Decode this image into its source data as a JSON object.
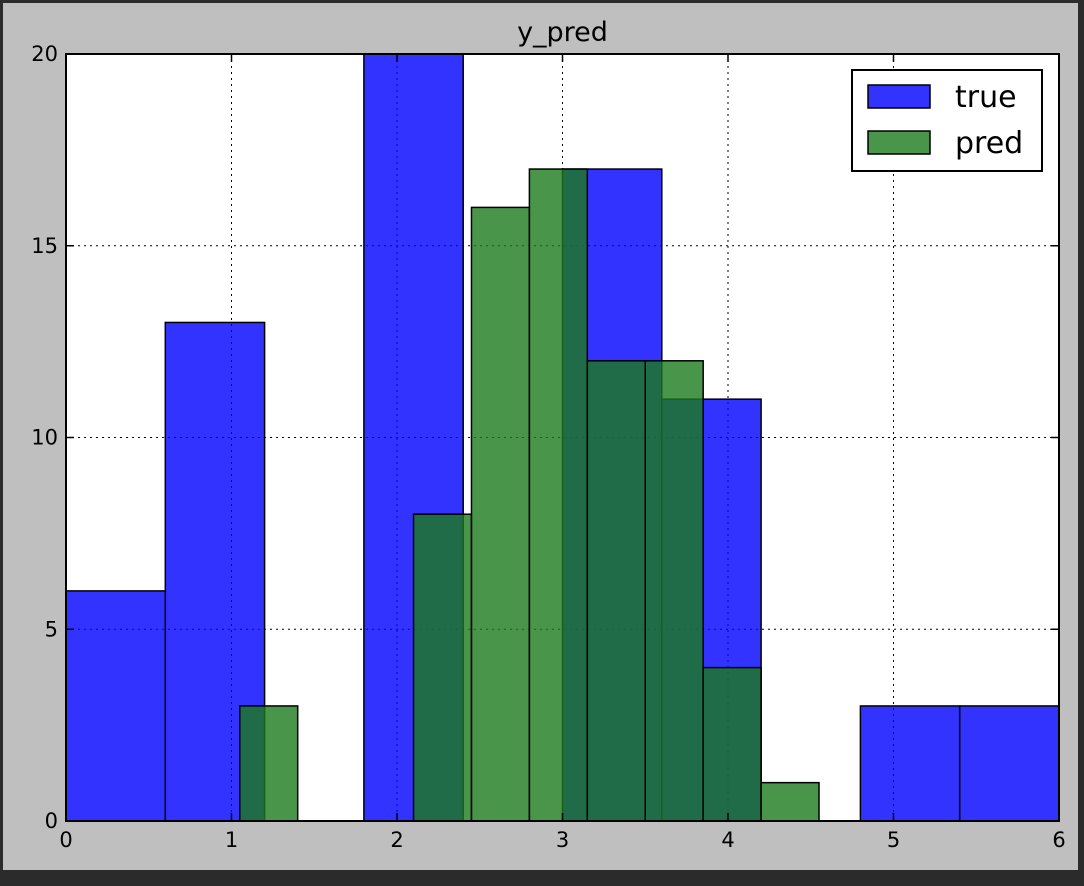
{
  "chart_data": {
    "type": "bar",
    "title": "y_pred",
    "xlabel": "",
    "ylabel": "",
    "xlim": [
      0,
      6
    ],
    "ylim": [
      0,
      20
    ],
    "x_ticks": [
      "0",
      "1",
      "2",
      "3",
      "4",
      "5",
      "6"
    ],
    "y_ticks": [
      "0",
      "5",
      "10",
      "15",
      "20"
    ],
    "grid": true,
    "legend_position": "top-right",
    "series": [
      {
        "name": "true",
        "color": "#0000ff",
        "opacity": 0.8,
        "bins": [
          {
            "x0": 0.0,
            "x1": 0.6,
            "count": 6
          },
          {
            "x0": 0.6,
            "x1": 1.2,
            "count": 13
          },
          {
            "x0": 1.2,
            "x1": 1.8,
            "count": 0
          },
          {
            "x0": 1.8,
            "x1": 2.4,
            "count": 21
          },
          {
            "x0": 2.4,
            "x1": 3.0,
            "count": 0
          },
          {
            "x0": 3.0,
            "x1": 3.6,
            "count": 17
          },
          {
            "x0": 3.6,
            "x1": 4.2,
            "count": 11
          },
          {
            "x0": 4.2,
            "x1": 4.8,
            "count": 0
          },
          {
            "x0": 4.8,
            "x1": 5.4,
            "count": 3
          },
          {
            "x0": 5.4,
            "x1": 6.0,
            "count": 3
          }
        ]
      },
      {
        "name": "pred",
        "color": "#1b7a1b",
        "opacity": 0.8,
        "bins": [
          {
            "x0": 1.05,
            "x1": 1.4,
            "count": 3
          },
          {
            "x0": 1.4,
            "x1": 1.75,
            "count": 0
          },
          {
            "x0": 1.75,
            "x1": 2.1,
            "count": 0
          },
          {
            "x0": 2.1,
            "x1": 2.45,
            "count": 8
          },
          {
            "x0": 2.45,
            "x1": 2.8,
            "count": 16
          },
          {
            "x0": 2.8,
            "x1": 3.15,
            "count": 17
          },
          {
            "x0": 3.15,
            "x1": 3.5,
            "count": 12
          },
          {
            "x0": 3.5,
            "x1": 3.85,
            "count": 12
          },
          {
            "x0": 3.85,
            "x1": 4.2,
            "count": 4
          },
          {
            "x0": 4.2,
            "x1": 4.55,
            "count": 1
          }
        ]
      }
    ]
  }
}
